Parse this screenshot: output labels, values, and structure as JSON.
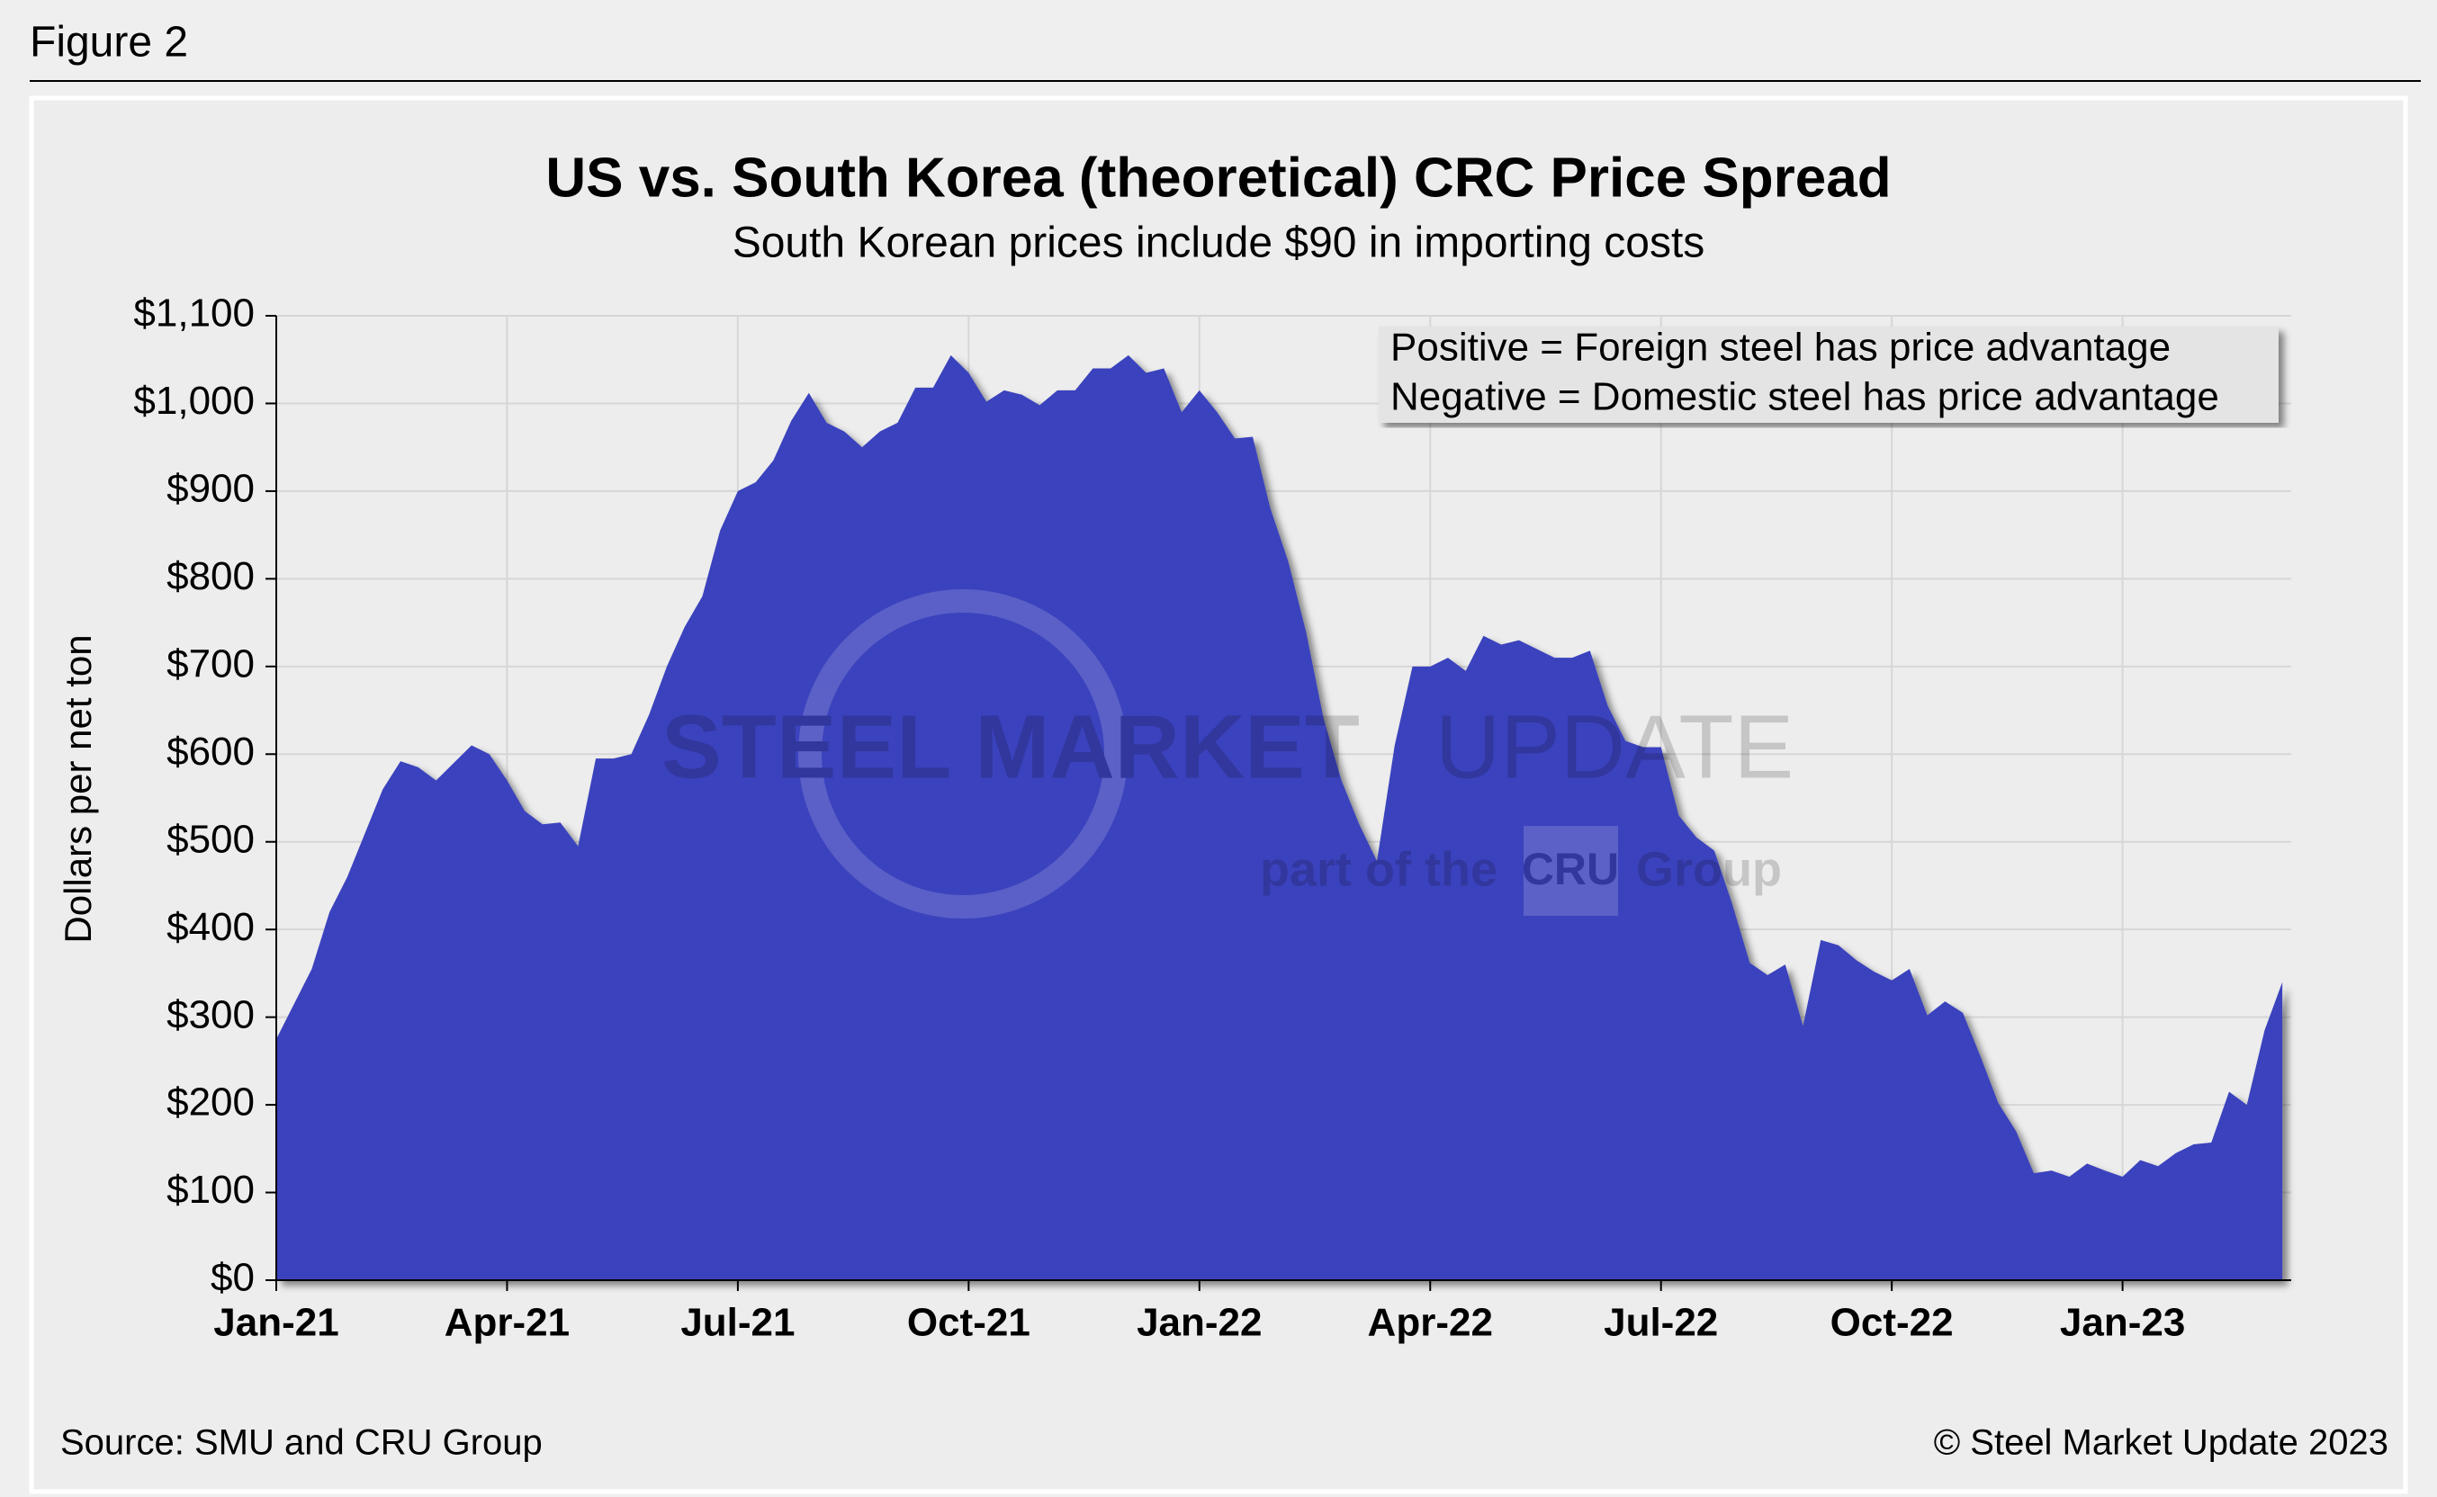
{
  "figure_label": "Figure 2",
  "chart_data": {
    "type": "area",
    "title": "US vs. South Korea (theoretical) CRC Price Spread",
    "subtitle": "South Korean prices include $90 in importing costs",
    "y_label": "Dollars per net ton",
    "annotations": [
      "Positive = Foreign steel has price advantage",
      "Negative = Domestic steel has price advantage"
    ],
    "watermark": [
      "STEEL MARKET",
      "UPDATE",
      "part of the",
      "CRU",
      "Group"
    ],
    "source": "Source: SMU and CRU Group",
    "copyright": "© Steel Market Update 2023",
    "color": "#3a43bd",
    "grid": true,
    "categories": [
      "Jan-21",
      null,
      null,
      null,
      null,
      null,
      null,
      null,
      null,
      null,
      null,
      null,
      null,
      "Apr-21",
      null,
      null,
      null,
      null,
      null,
      null,
      null,
      null,
      null,
      null,
      null,
      null,
      "Jul-21",
      null,
      null,
      null,
      null,
      null,
      null,
      null,
      null,
      null,
      null,
      null,
      null,
      "Oct-21",
      null,
      null,
      null,
      null,
      null,
      null,
      null,
      null,
      null,
      null,
      null,
      null,
      "Jan-22",
      null,
      null,
      null,
      null,
      null,
      null,
      null,
      null,
      null,
      null,
      null,
      null,
      "Apr-22",
      null,
      null,
      null,
      null,
      null,
      null,
      null,
      null,
      null,
      null,
      null,
      null,
      "Jul-22",
      null,
      null,
      null,
      null,
      null,
      null,
      null,
      null,
      null,
      null,
      null,
      null,
      "Oct-22",
      null,
      null,
      null,
      null,
      null,
      null,
      null,
      null,
      null,
      null,
      null,
      null,
      "Jan-23",
      null,
      null,
      null,
      null,
      null,
      null,
      null,
      null,
      null
    ],
    "values": [
      275,
      315,
      355,
      420,
      460,
      510,
      560,
      592,
      585,
      570,
      590,
      610,
      600,
      570,
      535,
      520,
      522,
      495,
      595,
      595,
      600,
      645,
      700,
      745,
      780,
      855,
      900,
      910,
      935,
      980,
      1012,
      978,
      968,
      950,
      968,
      978,
      1018,
      1018,
      1055,
      1035,
      1002,
      1015,
      1010,
      998,
      1015,
      1015,
      1040,
      1040,
      1055,
      1035,
      1040,
      990,
      1015,
      990,
      960,
      962,
      880,
      820,
      740,
      640,
      570,
      520,
      478,
      610,
      700,
      700,
      710,
      695,
      735,
      725,
      730,
      720,
      710,
      710,
      718,
      655,
      615,
      608,
      608,
      530,
      505,
      490,
      430,
      362,
      348,
      360,
      290,
      388,
      382,
      365,
      352,
      342,
      355,
      302,
      318,
      305,
      255,
      202,
      170,
      122,
      125,
      118,
      133,
      125,
      118,
      137,
      130,
      145,
      155,
      157,
      215,
      200,
      285,
      340
    ],
    "ylim": [
      0,
      1100
    ],
    "yticks": [
      {
        "value": 0,
        "label": "$0"
      },
      {
        "value": 100,
        "label": "$100"
      },
      {
        "value": 200,
        "label": "$200"
      },
      {
        "value": 300,
        "label": "$300"
      },
      {
        "value": 400,
        "label": "$400"
      },
      {
        "value": 500,
        "label": "$500"
      },
      {
        "value": 600,
        "label": "$600"
      },
      {
        "value": 700,
        "label": "$700"
      },
      {
        "value": 800,
        "label": "$800"
      },
      {
        "value": 900,
        "label": "$900"
      },
      {
        "value": 1000,
        "label": "$1,000"
      },
      {
        "value": 1100,
        "label": "$1,100"
      }
    ]
  }
}
